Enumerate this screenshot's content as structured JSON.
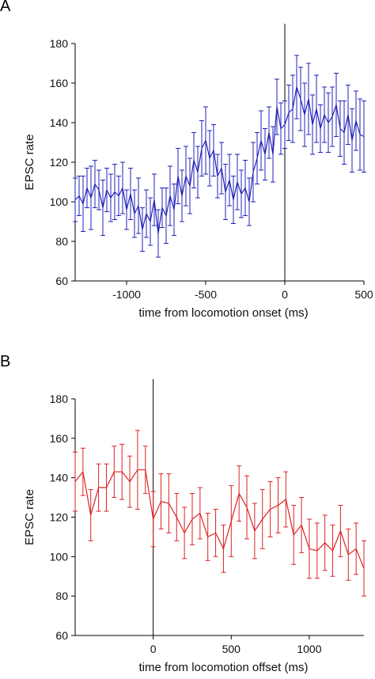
{
  "panels": [
    {
      "letter": "A"
    },
    {
      "letter": "B"
    }
  ],
  "chart_data": [
    {
      "type": "line",
      "title": "",
      "xlabel": "time from locomotion onset (ms)",
      "ylabel": "EPSC rate",
      "xlim": [
        -1325,
        500
      ],
      "ylim": [
        60,
        180
      ],
      "xticks": [
        -1000,
        -500,
        0,
        500
      ],
      "xtick_labels": [
        "-1000",
        "-500",
        "0",
        "500"
      ],
      "yticks": [
        60,
        80,
        100,
        120,
        140,
        160,
        180
      ],
      "ytick_labels": [
        "60",
        "80",
        "100",
        "120",
        "140",
        "160",
        "180"
      ],
      "vline": 0,
      "grid": false,
      "color": "#2222bb",
      "series": [
        {
          "x": [
            -1325,
            -1300,
            -1275,
            -1250,
            -1225,
            -1200,
            -1175,
            -1150,
            -1125,
            -1100,
            -1075,
            -1050,
            -1025,
            -1000,
            -975,
            -950,
            -925,
            -900,
            -875,
            -850,
            -825,
            -800,
            -775,
            -750,
            -725,
            -700,
            -675,
            -650,
            -625,
            -600,
            -575,
            -550,
            -525,
            -500,
            -475,
            -450,
            -425,
            -400,
            -375,
            -350,
            -325,
            -300,
            -275,
            -250,
            -225,
            -200,
            -175,
            -150,
            -125,
            -100,
            -75,
            -50,
            -25,
            0,
            25,
            50,
            75,
            100,
            125,
            150,
            175,
            200,
            225,
            250,
            275,
            300,
            325,
            350,
            375,
            400,
            425,
            450,
            475,
            500
          ],
          "y": [
            101,
            103,
            99,
            107,
            102,
            109,
            106,
            97,
            106,
            102,
            105,
            103,
            107,
            96,
            104,
            94,
            98,
            86,
            94,
            90,
            101,
            84,
            97,
            93,
            103,
            96,
            113,
            103,
            113,
            108,
            121,
            115,
            127,
            131,
            122,
            126,
            113,
            117,
            105,
            111,
            101,
            110,
            104,
            107,
            100,
            115,
            122,
            131,
            124,
            135,
            124,
            148,
            137,
            139,
            145,
            147,
            158,
            152,
            144,
            152,
            139,
            147,
            137,
            144,
            140,
            143,
            149,
            137,
            135,
            144,
            131,
            141,
            134,
            133
          ],
          "err": [
            11,
            10,
            14,
            10,
            16,
            12,
            10,
            14,
            11,
            12,
            14,
            10,
            13,
            10,
            13,
            12,
            14,
            11,
            12,
            12,
            13,
            12,
            10,
            14,
            15,
            13,
            14,
            13,
            15,
            14,
            14,
            13,
            14,
            17,
            14,
            13,
            11,
            13,
            14,
            13,
            12,
            14,
            12,
            14,
            12,
            15,
            13,
            15,
            13,
            13,
            14,
            14,
            13,
            12,
            14,
            17,
            16,
            16,
            16,
            18,
            15,
            17,
            12,
            14,
            15,
            15,
            16,
            14,
            16,
            15,
            16,
            15,
            18,
            18
          ]
        }
      ]
    },
    {
      "type": "line",
      "title": "",
      "xlabel": "time from locomotion offset (ms)",
      "ylabel": "EPSC rate",
      "xlim": [
        -500,
        1350
      ],
      "ylim": [
        60,
        180
      ],
      "xticks": [
        0,
        500,
        1000
      ],
      "xtick_labels": [
        "0",
        "500",
        "1000"
      ],
      "yticks": [
        60,
        80,
        100,
        120,
        140,
        160,
        180
      ],
      "ytick_labels": [
        "60",
        "80",
        "100",
        "120",
        "140",
        "160",
        "180"
      ],
      "vline": 0,
      "grid": false,
      "color": "#dd2222",
      "series": [
        {
          "x": [
            -500,
            -450,
            -400,
            -350,
            -300,
            -250,
            -200,
            -150,
            -100,
            -50,
            0,
            50,
            100,
            150,
            200,
            250,
            300,
            350,
            400,
            450,
            500,
            550,
            600,
            650,
            700,
            750,
            800,
            850,
            900,
            950,
            1000,
            1050,
            1100,
            1150,
            1200,
            1250,
            1300,
            1350
          ],
          "y": [
            138,
            143,
            121,
            135,
            135,
            143,
            143,
            138,
            144,
            144,
            119,
            128,
            127,
            120,
            112,
            119,
            122,
            110,
            112,
            104,
            118,
            132,
            125,
            113,
            119,
            124,
            126,
            129,
            111,
            116,
            104,
            103,
            107,
            103,
            113,
            101,
            104,
            94
          ],
          "err": [
            15,
            12,
            13,
            12,
            12,
            13,
            14,
            13,
            20,
            12,
            14,
            14,
            15,
            12,
            13,
            13,
            13,
            12,
            12,
            12,
            18,
            14,
            16,
            14,
            15,
            14,
            14,
            14,
            15,
            14,
            15,
            14,
            14,
            13,
            13,
            13,
            13,
            14
          ]
        }
      ]
    }
  ]
}
